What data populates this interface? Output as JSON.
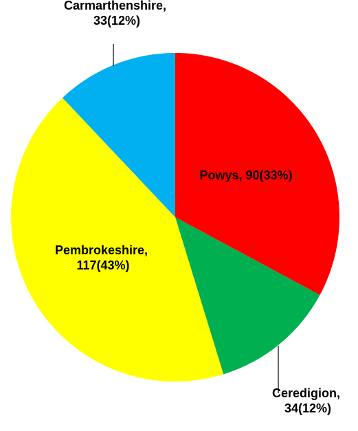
{
  "chart_data": {
    "type": "pie",
    "categories": [
      "Powys",
      "Ceredigion",
      "Pembrokeshire",
      "Carmarthenshire"
    ],
    "values": [
      90,
      34,
      117,
      33
    ],
    "value_labels": [
      "Powys, 90(33%)",
      "Ceredigion, 34(12%)",
      "Pembrokeshire, 117(43%)",
      "Carmarthenshire, 33(12%)"
    ],
    "colors": [
      "#ff0000",
      "#00b050",
      "#ffff00",
      "#00b0f0"
    ]
  }
}
